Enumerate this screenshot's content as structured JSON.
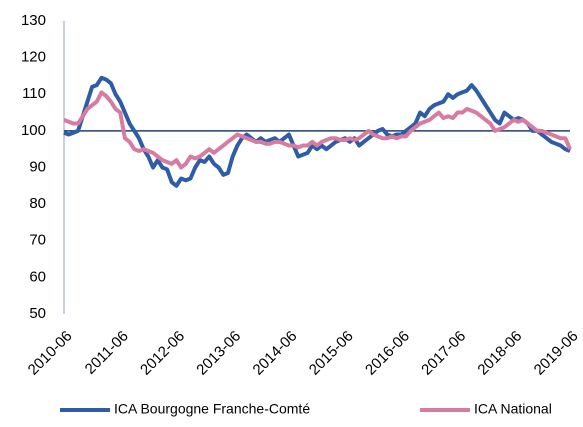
{
  "chart_data": {
    "type": "line",
    "categories": [
      "2010-06",
      null,
      null,
      null,
      null,
      null,
      null,
      null,
      null,
      null,
      null,
      null,
      "2011-06",
      null,
      null,
      null,
      null,
      null,
      null,
      null,
      null,
      null,
      null,
      null,
      "2012-06",
      null,
      null,
      null,
      null,
      null,
      null,
      null,
      null,
      null,
      null,
      null,
      "2013-06",
      null,
      null,
      null,
      null,
      null,
      null,
      null,
      null,
      null,
      null,
      null,
      "2014-06",
      null,
      null,
      null,
      null,
      null,
      null,
      null,
      null,
      null,
      null,
      null,
      "2015-06",
      null,
      null,
      null,
      null,
      null,
      null,
      null,
      null,
      null,
      null,
      null,
      "2016-06",
      null,
      null,
      null,
      null,
      null,
      null,
      null,
      null,
      null,
      null,
      null,
      "2017-06",
      null,
      null,
      null,
      null,
      null,
      null,
      null,
      null,
      null,
      null,
      null,
      "2018-06",
      null,
      null,
      null,
      null,
      null,
      null,
      null,
      null,
      null,
      null,
      null,
      "2019-06"
    ],
    "series": [
      {
        "name": "ICA Bourgogne Franche-Comté",
        "color": "#2f5ca6",
        "values": [
          99.5,
          99,
          99.5,
          100,
          104,
          108,
          112,
          112.5,
          114.5,
          114,
          113,
          110,
          108,
          105,
          102,
          100,
          98,
          95,
          93,
          90,
          92,
          90,
          89.5,
          86,
          85,
          87,
          86.5,
          87,
          90,
          92,
          91.5,
          93,
          91,
          90,
          88,
          88.5,
          93,
          96,
          98,
          99,
          98,
          97,
          98,
          97,
          97.5,
          98,
          97,
          98,
          99,
          96,
          93,
          93.5,
          94,
          96,
          95,
          96,
          95,
          96,
          97,
          97.5,
          98,
          97,
          98,
          96,
          97,
          98,
          99,
          100,
          100.5,
          99,
          98.5,
          99,
          99,
          100,
          101,
          102,
          105,
          104,
          106,
          107,
          107.5,
          108,
          110,
          109,
          110,
          110.5,
          111,
          112.5,
          111,
          109,
          107,
          105,
          103,
          102,
          105,
          104,
          103,
          103.5,
          103,
          102,
          100,
          100,
          99,
          98,
          97,
          96.5,
          96,
          95,
          94.5
        ]
      },
      {
        "name": "ICA National",
        "color": "#d77ba1",
        "values": [
          103,
          102.5,
          102,
          102,
          104,
          106,
          107,
          108,
          110.5,
          109.5,
          108,
          106,
          105,
          98,
          97,
          95,
          94.5,
          95,
          94.5,
          94,
          93,
          92,
          91.5,
          91,
          92,
          90,
          91,
          93,
          92.5,
          93,
          94,
          95,
          94,
          95,
          96,
          97,
          98,
          99,
          98.5,
          98,
          97.5,
          97,
          97,
          96.5,
          96.5,
          97,
          97,
          96.5,
          96,
          96,
          95.5,
          96,
          96,
          97,
          96,
          97,
          97.5,
          98,
          98,
          97.5,
          97.5,
          98,
          97.5,
          98,
          99,
          100,
          99,
          98.5,
          98,
          98,
          98.5,
          98,
          98.5,
          98.5,
          100,
          101,
          102,
          102.5,
          103,
          104,
          105,
          103.5,
          104,
          103.5,
          105,
          105,
          106,
          105.5,
          105,
          104,
          103,
          102,
          100,
          100.5,
          101,
          102,
          103,
          102.5,
          103,
          102,
          101,
          100,
          100,
          99.5,
          99,
          98.5,
          98,
          98,
          95
        ]
      }
    ],
    "ylim": [
      50,
      130
    ],
    "yticks": [
      50,
      60,
      70,
      80,
      90,
      100,
      110,
      120,
      130
    ],
    "reference_line": 100,
    "legend": "bottom",
    "grid": false
  }
}
